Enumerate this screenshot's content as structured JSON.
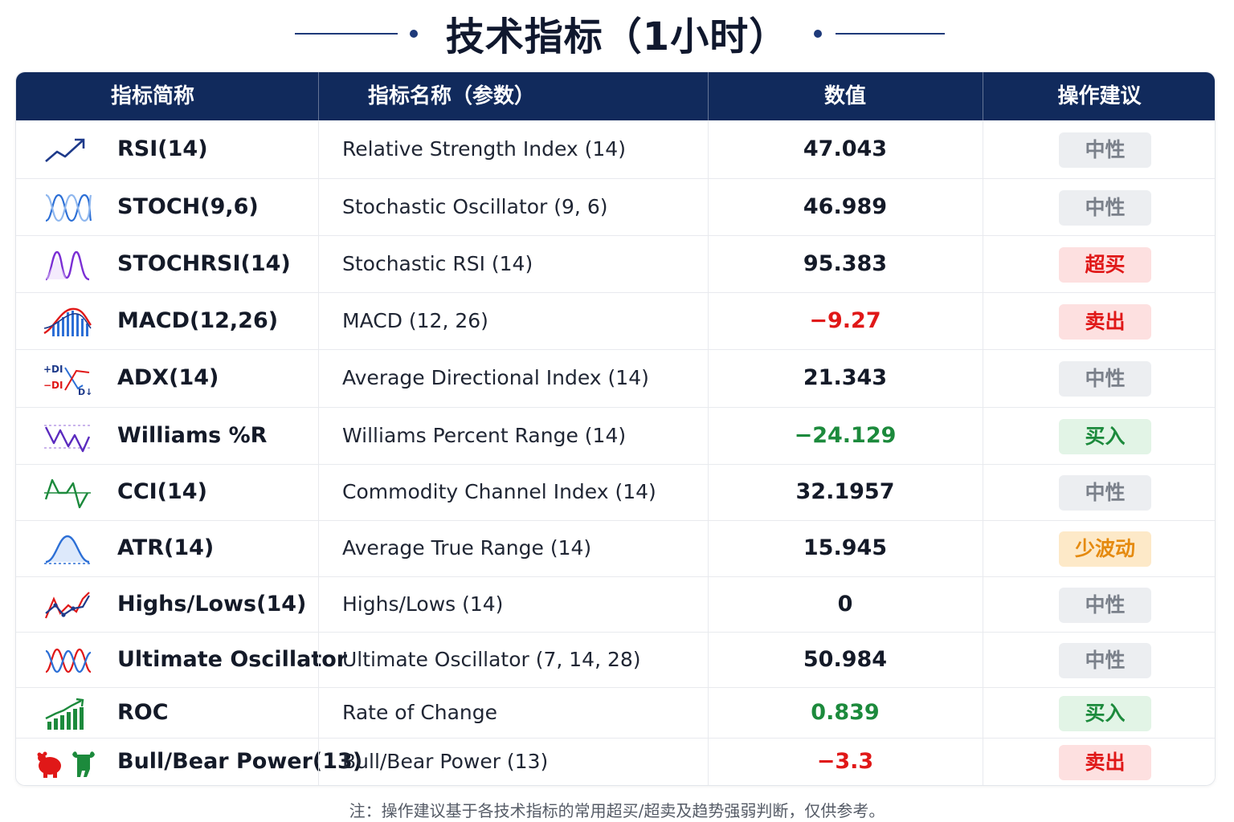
{
  "title": "技术指标（1小时）",
  "headers": {
    "abbr": "指标简称",
    "name": "指标名称（参数）",
    "value": "数值",
    "action": "操作建议"
  },
  "rows": [
    {
      "icon": "trend-up-arrow-icon",
      "abbr": "RSI(14)",
      "name": "Relative Strength Index (14)",
      "value": "47.043",
      "value_color": "default",
      "action": "中性",
      "action_type": "neutral"
    },
    {
      "icon": "stochastic-waves-icon",
      "abbr": "STOCH(9,6)",
      "name": "Stochastic Oscillator (9, 6)",
      "value": "46.989",
      "value_color": "default",
      "action": "中性",
      "action_type": "neutral"
    },
    {
      "icon": "stochrsi-wave-icon",
      "abbr": "STOCHRSI(14)",
      "name": "Stochastic RSI (14)",
      "value": "95.383",
      "value_color": "default",
      "action": "超买",
      "action_type": "sell"
    },
    {
      "icon": "macd-histogram-icon",
      "abbr": "MACD(12,26)",
      "name": "MACD (12, 26)",
      "value": "−9.27",
      "value_color": "red",
      "action": "卖出",
      "action_type": "sell"
    },
    {
      "icon": "adx-di-cross-icon",
      "abbr": "ADX(14)",
      "name": "Average Directional Index (14)",
      "value": "21.343",
      "value_color": "default",
      "action": "中性",
      "action_type": "neutral"
    },
    {
      "icon": "williams-r-zigzag-icon",
      "abbr": "Williams %R",
      "name": "Williams Percent Range (14)",
      "value": "−24.129",
      "value_color": "green",
      "action": "买入",
      "action_type": "buy"
    },
    {
      "icon": "cci-wave-icon",
      "abbr": "CCI(14)",
      "name": "Commodity Channel Index (14)",
      "value": "32.1957",
      "value_color": "default",
      "action": "中性",
      "action_type": "neutral"
    },
    {
      "icon": "atr-bell-curve-icon",
      "abbr": "ATR(14)",
      "name": "Average True Range (14)",
      "value": "15.945",
      "value_color": "default",
      "action": "少波动",
      "action_type": "warn"
    },
    {
      "icon": "highs-lows-line-icon",
      "abbr": "Highs/Lows(14)",
      "name": "Highs/Lows (14)",
      "value": "0",
      "value_color": "default",
      "action": "中性",
      "action_type": "neutral"
    },
    {
      "icon": "ultimate-oscillator-waves-icon",
      "abbr": "Ultimate Oscillator",
      "name": "Ultimate Oscillator (7, 14, 28)",
      "value": "50.984",
      "value_color": "default",
      "action": "中性",
      "action_type": "neutral"
    },
    {
      "icon": "roc-bars-arrow-icon",
      "abbr": "ROC",
      "name": "Rate of Change",
      "value": "0.839",
      "value_color": "green",
      "action": "买入",
      "action_type": "buy"
    },
    {
      "icon": "bull-bear-icon",
      "abbr": "Bull/Bear Power(13)",
      "name": "Bull/Bear Power (13)",
      "value": "−3.3",
      "value_color": "red",
      "action": "卖出",
      "action_type": "sell"
    }
  ],
  "icon_labels": {
    "plus_di": "+DI",
    "minus_di": "−DI"
  },
  "colors": {
    "header_bg": "#112a5c",
    "sell": "#e01818",
    "buy": "#1c8a3c",
    "warn": "#e58a0f",
    "neutral": "#7a808a"
  },
  "footnote": "注：操作建议基于各技术指标的常用超买/超卖及趋势强弱判断，仅供参考。"
}
